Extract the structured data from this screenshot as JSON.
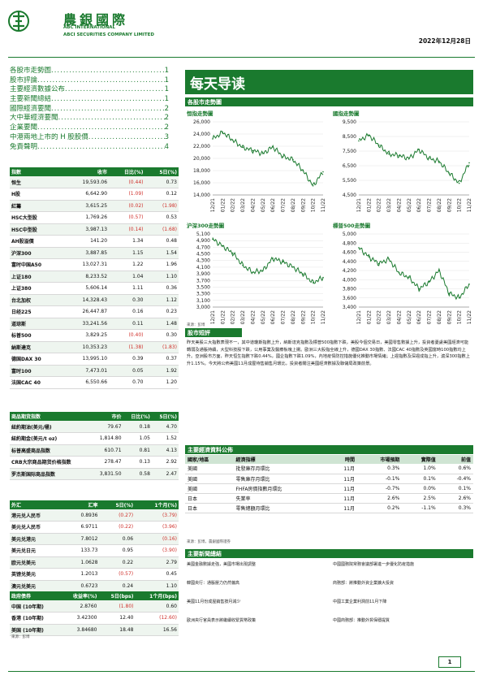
{
  "header": {
    "cn_name": "農銀國際",
    "en_line1": "ABC INTERNATIONAL",
    "en_line2": "ABCI SECURITIES COMPANY LIMITED",
    "date": "2022年12月28日"
  },
  "toc": [
    {
      "t": "各股市走勢圖",
      "p": "1"
    },
    {
      "t": "股市評論",
      "p": "1"
    },
    {
      "t": "主要經濟數據公布",
      "p": "1"
    },
    {
      "t": "主要新聞總結",
      "p": "1"
    },
    {
      "t": "國際經濟要聞",
      "p": "2"
    },
    {
      "t": "大中華經濟要聞",
      "p": "2"
    },
    {
      "t": "企業要聞",
      "p": "2"
    },
    {
      "t": "中港兩地上市的 H 股股價",
      "p": "3"
    },
    {
      "t": "免責聲明",
      "p": "4"
    }
  ],
  "banner": "每天导读",
  "charts_section": "各股市走勢圖",
  "chart_data": [
    {
      "type": "line",
      "title": "恒指走勢圖",
      "x": [
        "12/21",
        "01/22",
        "02/22",
        "03/22",
        "04/22",
        "05/22",
        "06/22",
        "07/22",
        "08/22",
        "09/22",
        "10/22",
        "11/22"
      ],
      "values": [
        23200,
        24300,
        23000,
        21800,
        21300,
        20800,
        21900,
        20300,
        19800,
        18000,
        15500,
        17800
      ],
      "yticks": [
        "26,000",
        "24,000",
        "22,000",
        "20,000",
        "18,000",
        "16,000",
        "14,000"
      ],
      "ylim": [
        14000,
        26000
      ]
    },
    {
      "type": "line",
      "title": "國指走勢圖",
      "x": [
        "12/21",
        "01/22",
        "02/22",
        "03/22",
        "04/22",
        "05/22",
        "06/22",
        "07/22",
        "08/22",
        "09/22",
        "10/22",
        "11/22"
      ],
      "values": [
        8200,
        8600,
        7900,
        7300,
        7200,
        7000,
        7600,
        7000,
        6800,
        6000,
        5300,
        6700
      ],
      "yticks": [
        "9,500",
        "8,500",
        "7,500",
        "6,500",
        "5,500",
        "4,500"
      ],
      "ylim": [
        4500,
        9500
      ]
    },
    {
      "type": "line",
      "title": "沪深300走勢圖",
      "x": [
        "12/21",
        "01/22",
        "02/22",
        "03/22",
        "04/22",
        "05/22",
        "06/22",
        "07/22",
        "08/22",
        "09/22",
        "10/22",
        "11/22"
      ],
      "values": [
        4950,
        4750,
        4550,
        4200,
        4000,
        4050,
        4400,
        4300,
        4150,
        3950,
        3700,
        3850
      ],
      "yticks": [
        "5,100",
        "4,900",
        "4,700",
        "4,500",
        "4,300",
        "4,100",
        "3,900",
        "3,700",
        "3,500",
        "3,300",
        "3,100",
        "3,000"
      ],
      "ylim": [
        3000,
        5100
      ]
    },
    {
      "type": "line",
      "title": "標普500走勢圖",
      "x": [
        "12/21",
        "01/22",
        "02/22",
        "03/22",
        "04/22",
        "05/22",
        "06/22",
        "07/22",
        "08/22",
        "09/22",
        "10/22",
        "11/22"
      ],
      "values": [
        4700,
        4500,
        4350,
        4450,
        4150,
        4050,
        3800,
        3950,
        4200,
        3700,
        3600,
        3900
      ],
      "yticks": [
        "5,000",
        "4,800",
        "4,600",
        "4,400",
        "4,200",
        "4,000",
        "3,800",
        "3,600",
        "3,400"
      ],
      "ylim": [
        3400,
        5000
      ]
    }
  ],
  "chart_source": "來源：彭博",
  "index_table": {
    "headers": [
      "指數",
      "收市",
      "日比(%)",
      "5日(%)"
    ],
    "rows": [
      [
        "恒生",
        "19,593.06",
        "(0.44)",
        "0.73"
      ],
      [
        "H股",
        "6,642.90",
        "(1.09)",
        "0.12"
      ],
      [
        "紅籌",
        "3,615.25",
        "(0.02)",
        "(1.98)"
      ],
      [
        "HSC大型股",
        "1,769.26",
        "(0.57)",
        "0.53"
      ],
      [
        "HSC中型股",
        "3,987.13",
        "(0.14)",
        "(1.68)"
      ],
      [
        "AH股溢價",
        "141.20",
        "1.34",
        "0.48"
      ],
      [
        "沪深300",
        "3,887.85",
        "1.15",
        "1.54"
      ],
      [
        "富时中国A50",
        "13,027.31",
        "1.22",
        "1.96"
      ],
      [
        "上证180",
        "8,233.52",
        "1.04",
        "1.10"
      ],
      [
        "上证380",
        "5,606.14",
        "1.11",
        "0.36"
      ],
      [
        "台北加权",
        "14,328.43",
        "0.30",
        "1.12"
      ],
      [
        "日经225",
        "26,447.87",
        "0.16",
        "0.23"
      ],
      [
        "道琼斯",
        "33,241.56",
        "0.11",
        "1.48"
      ],
      [
        "标普500",
        "3,829.25",
        "(0.40)",
        "0.30"
      ],
      [
        "納斯達克",
        "10,353.23",
        "(1.38)",
        "(1.83)"
      ],
      [
        "德国DAX 30",
        "13,995.10",
        "0.39",
        "0.37"
      ],
      [
        "富时100",
        "7,473.01",
        "0.05",
        "1.92"
      ],
      [
        "法国CAC 40",
        "6,550.66",
        "0.70",
        "1.20"
      ]
    ]
  },
  "commodity_table": {
    "headers": [
      "商品期货指数",
      "市价",
      "日比(%)",
      "5日(%)"
    ],
    "rows": [
      [
        "紐約期油(美元/桶)",
        "79.67",
        "0.18",
        "4.70"
      ],
      [
        "紐約期金(美元/t oz)",
        "1,814.80",
        "1.05",
        "1.52"
      ],
      [
        "标普高盛商品指数",
        "610.71",
        "0.81",
        "4.13"
      ],
      [
        "CRB大宗商品期货价格指数",
        "278.47",
        "0.13",
        "2.92"
      ],
      [
        "罗杰斯国际商品指数",
        "3,831.50",
        "0.58",
        "2.47"
      ]
    ]
  },
  "fx_table": {
    "headers": [
      "外汇",
      "汇率",
      "5日(%)",
      "1个月(%)"
    ],
    "rows": [
      [
        "港元兑人民币",
        "0.8936",
        "(0.27)",
        "(3.79)"
      ],
      [
        "美元兑人民币",
        "6.9711",
        "(0.22)",
        "(3.96)"
      ],
      [
        "美元兑港元",
        "7.8012",
        "0.06",
        "(0.16)"
      ],
      [
        "美元兑日元",
        "133.73",
        "0.95",
        "(3.90)"
      ],
      [
        "欧元兑美元",
        "1.0628",
        "0.22",
        "2.79"
      ],
      [
        "英镑兑美元",
        "1.2013",
        "(0.57)",
        "0.45"
      ],
      [
        "澳元兑美元",
        "0.6723",
        "0.24",
        "1.10"
      ]
    ]
  },
  "bond_table": {
    "headers": [
      "政府债券",
      "收益率(%)",
      "5日(bps)",
      "1个月(bps)"
    ],
    "rows": [
      [
        "中国 (10年期)",
        "2.8760",
        "(1.80)",
        "0.60"
      ],
      [
        "香港 (10年期)",
        "3.42300",
        "12.40",
        "(12.60)"
      ],
      [
        "美国 (10年期)",
        "3.84680",
        "18.48",
        "16.56"
      ]
    ]
  },
  "table_source": "來源：彭博",
  "comment": {
    "title": "股市短評",
    "body": "昨天美股三大指數表現不一，其中道瓊斯指數上升，納斯達克指數及標普500指數下跌，美股今個交易日，美國零售數據上升，投資者憂慮美國經濟可能轉弱及通脹持續，大型科技股下跌，公用事業及醫療板塊上揚。歐洲三大股指全線上升，德國DAX 30指數、法國CAC 40指數及英國富時100指數均上升。亞洲股市方面，昨天恒生指數下跌0.44%，國企指數下跌1.09%，內地疫情防控措施優化推動市場情緒；上證指數及深證成指上升，滬深300指數上升1.15%。今天將公佈美國11月成屋待售銷售月環比，投資者關注美國經濟數據及聯儲局政策前景。"
  },
  "economic": {
    "title": "主要經濟資料公佈",
    "headers": [
      "國家/地區",
      "經濟指標",
      "時間",
      "市場預期",
      "實際值",
      "前值"
    ],
    "rows": [
      [
        "美國",
        "批發庫存月環比",
        "11月",
        "0.3%",
        "1.0%",
        "0.6%"
      ],
      [
        "美國",
        "零售庫存月環比",
        "11月",
        "-0.1%",
        "0.1%",
        "-0.4%"
      ],
      [
        "美國",
        "FHFA房價指數月環比",
        "11月",
        "-0.7%",
        "0.0%",
        "0.1%"
      ],
      [
        "日本",
        "失業率",
        "11月",
        "2.6%",
        "2.5%",
        "2.6%"
      ],
      [
        "日本",
        "零售總額月環比",
        "11月",
        "0.2%",
        "-1.1%",
        "0.3%"
      ]
    ],
    "source": "來源：彭博，農銀國際證券"
  },
  "news": {
    "title": "主要新聞總結",
    "left": [
      "美國金融數據走強，美國市場出現調整",
      "韓國央行：通脹壓力仍然偏高",
      "美國11月份成屋銷售按月減少",
      "歐洲央行官員表示將繼續收緊貨幣政策"
    ],
    "right": [
      "中國國務院常務會議部署進一步優化防疫措施",
      "商務部：將推動外資企業擴大投資",
      "中國工業企業利潤前11月下降",
      "中國商務部：推動外貿保穩提質"
    ]
  },
  "page": "1",
  "colors": {
    "brand": "#1a7a2e",
    "negative": "#d0302b"
  }
}
